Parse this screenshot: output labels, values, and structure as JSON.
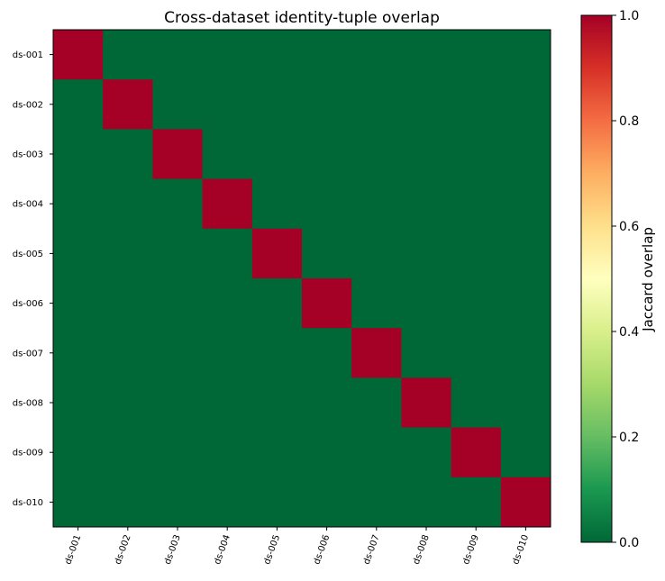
{
  "chart_data": {
    "type": "heatmap",
    "title": "Cross-dataset identity-tuple overlap",
    "row_labels": [
      "ds-001",
      "ds-002",
      "ds-003",
      "ds-004",
      "ds-005",
      "ds-006",
      "ds-007",
      "ds-008",
      "ds-009",
      "ds-010"
    ],
    "col_labels": [
      "ds-001",
      "ds-002",
      "ds-003",
      "ds-004",
      "ds-005",
      "ds-006",
      "ds-007",
      "ds-008",
      "ds-009",
      "ds-010"
    ],
    "values": [
      [
        1,
        0,
        0,
        0,
        0,
        0,
        0,
        0,
        0,
        0
      ],
      [
        0,
        1,
        0,
        0,
        0,
        0,
        0,
        0,
        0,
        0
      ],
      [
        0,
        0,
        1,
        0,
        0,
        0,
        0,
        0,
        0,
        0
      ],
      [
        0,
        0,
        0,
        1,
        0,
        0,
        0,
        0,
        0,
        0
      ],
      [
        0,
        0,
        0,
        0,
        1,
        0,
        0,
        0,
        0,
        0
      ],
      [
        0,
        0,
        0,
        0,
        0,
        1,
        0,
        0,
        0,
        0
      ],
      [
        0,
        0,
        0,
        0,
        0,
        0,
        1,
        0,
        0,
        0
      ],
      [
        0,
        0,
        0,
        0,
        0,
        0,
        0,
        1,
        0,
        0
      ],
      [
        0,
        0,
        0,
        0,
        0,
        0,
        0,
        0,
        1,
        0
      ],
      [
        0,
        0,
        0,
        0,
        0,
        0,
        0,
        0,
        0,
        1
      ]
    ],
    "colormap": "RdYlGn_r",
    "colormap_stops": [
      "#006837",
      "#1a9850",
      "#66bd63",
      "#a6d96a",
      "#d9ef8b",
      "#ffffbf",
      "#fee08b",
      "#fdae61",
      "#f46d43",
      "#d73027",
      "#a50026"
    ],
    "colorbar": {
      "label": "Jaccard overlap",
      "range": [
        0,
        1
      ],
      "ticks": [
        0.0,
        0.2,
        0.4,
        0.6,
        0.8,
        1.0
      ],
      "tick_labels": [
        "0.0",
        "0.2",
        "0.4",
        "0.6",
        "0.8",
        "1.0"
      ]
    },
    "grid": false,
    "xtick_rotation": "diagonal"
  }
}
